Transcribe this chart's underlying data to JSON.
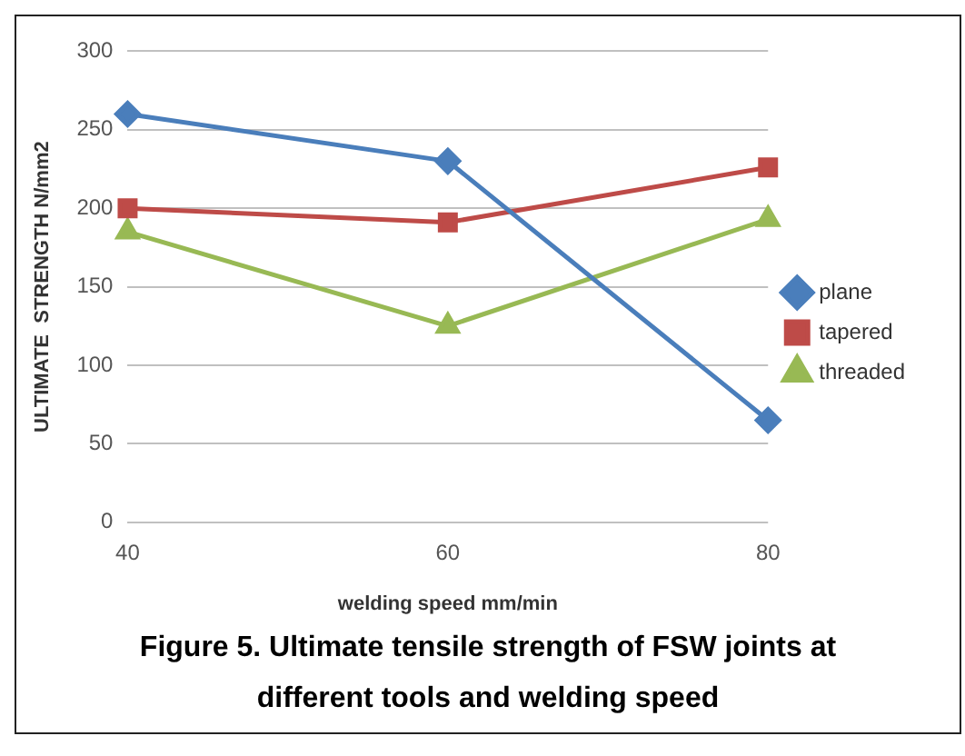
{
  "chart_data": {
    "type": "line",
    "ylabel": "ULTIMATE  STRENGTH N/mm2",
    "xlabel": "welding speed mm/min",
    "categories": [
      "40",
      "60",
      "80"
    ],
    "series": [
      {
        "name": "plane",
        "color": "#4a7ebb",
        "marker": "diamond",
        "values": [
          260,
          230,
          65
        ]
      },
      {
        "name": "tapered",
        "color": "#be4b48",
        "marker": "square",
        "values": [
          200,
          191,
          226
        ]
      },
      {
        "name": "threaded",
        "color": "#98b954",
        "marker": "triangle",
        "values": [
          185,
          125,
          193
        ]
      }
    ],
    "ylim": [
      0,
      300
    ],
    "yticks": [
      0,
      50,
      100,
      150,
      200,
      250,
      300
    ],
    "grid": "y",
    "legend": "right",
    "line_style": "solid",
    "annotations": [
      "Figure 5. Ultimate tensile strength of FSW joints at different tools and welding speed"
    ]
  }
}
